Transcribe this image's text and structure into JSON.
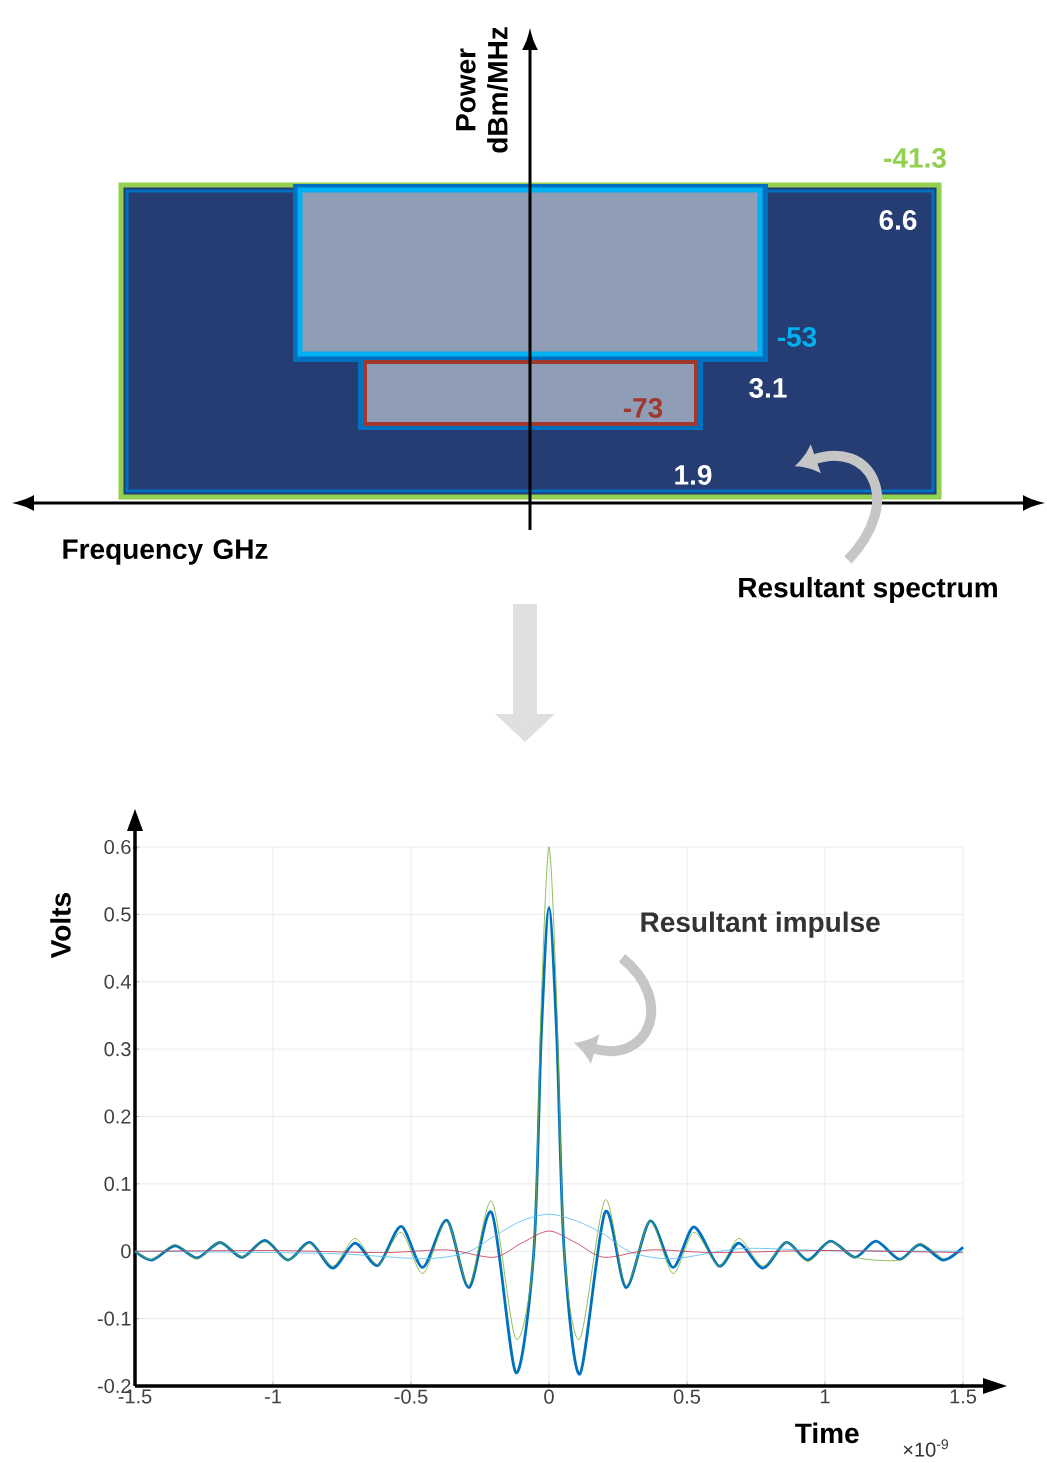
{
  "chart_data": [
    {
      "type": "other",
      "xlabel": "Frequency GHz",
      "ylabel": "Power dBm/MHz",
      "annotations": [
        "-41.3",
        "6.6",
        "-53",
        "3.1",
        "-73",
        "1.9",
        "Resultant spectrum"
      ]
    },
    {
      "type": "line",
      "xlabel": "Time",
      "ylabel": "Volts",
      "annotations": [
        "Resultant impulse",
        "×10$^{-9}$"
      ],
      "grid": true,
      "xlim": [
        -1.5,
        1.5
      ],
      "ylim": [
        -0.2,
        0.6
      ],
      "xticks": [
        -1.5,
        -1,
        -0.5,
        0,
        0.5,
        1,
        1.5
      ],
      "yticks": [
        -0.2,
        -0.1,
        0,
        0.1,
        0.2,
        0.3,
        0.4,
        0.5,
        0.6
      ],
      "series": [
        {
          "color": "#0072bd",
          "x": [
            -1.5,
            -1.438,
            -1.355,
            -1.275,
            -1.192,
            -1.112,
            -1.029,
            -0.946,
            -0.866,
            -0.783,
            -0.703,
            -0.62,
            -0.536,
            -0.457,
            -0.37,
            -0.29,
            -0.207,
            -0.12,
            -0.055,
            -0.028,
            0,
            0.028,
            0.055,
            0.112,
            0.203,
            0.279,
            0.366,
            0.449,
            0.525,
            0.616,
            0.688,
            0.775,
            0.859,
            0.938,
            1.02,
            1.109,
            1.185,
            1.27,
            1.344,
            1.428,
            1.5
          ],
          "values": [
            0.0,
            -0.013,
            0.008,
            -0.01,
            0.013,
            -0.009,
            0.016,
            -0.013,
            0.013,
            -0.025,
            0.012,
            -0.021,
            0.037,
            -0.024,
            0.046,
            -0.054,
            0.057,
            -0.18,
            0.0,
            0.32,
            0.51,
            0.32,
            0.0,
            -0.182,
            0.058,
            -0.054,
            0.045,
            -0.024,
            0.036,
            -0.022,
            0.012,
            -0.025,
            0.013,
            -0.013,
            0.015,
            -0.009,
            0.015,
            -0.012,
            0.01,
            -0.013,
            0.006
          ]
        },
        {
          "color": "#77ac30",
          "x": [
            -1.5,
            -1.438,
            -1.355,
            -1.275,
            -1.192,
            -1.112,
            -1.029,
            -0.946,
            -0.866,
            -0.783,
            -0.703,
            -0.62,
            -0.536,
            -0.457,
            -0.37,
            -0.29,
            -0.207,
            -0.12,
            -0.055,
            -0.028,
            0,
            0.028,
            0.055,
            0.112,
            0.203,
            0.279,
            0.366,
            0.449,
            0.525,
            0.616,
            0.688,
            0.775,
            0.859,
            0.938,
            1.02,
            1.109,
            1.185,
            1.27,
            1.344,
            1.428
          ],
          "values": [
            0.0,
            -0.012,
            0.01,
            -0.011,
            0.013,
            -0.008,
            0.014,
            -0.013,
            0.012,
            -0.022,
            0.019,
            -0.02,
            0.028,
            -0.033,
            0.044,
            -0.05,
            0.074,
            -0.13,
            0.0,
            0.37,
            0.6,
            0.37,
            0.0,
            -0.13,
            0.076,
            -0.05,
            0.044,
            -0.033,
            0.028,
            -0.022,
            0.019,
            -0.022,
            0.013,
            -0.015,
            0.014,
            -0.009,
            null,
            -0.013,
            0.011,
            -0.012
          ]
        },
        {
          "color": "#4dbeee",
          "x": [
            -1.5,
            -1.0,
            -0.75,
            -0.45,
            -0.3,
            -0.2,
            -0.1,
            0,
            0.1,
            0.2,
            0.3,
            0.45,
            0.7,
            1.0,
            1.5
          ],
          "values": [
            0.0,
            -0.002,
            -0.004,
            -0.011,
            -0.002,
            0.022,
            0.045,
            0.055,
            0.045,
            0.025,
            -0.002,
            -0.011,
            0.004,
            0.001,
            0.0
          ]
        },
        {
          "color": "#c0304a",
          "x": [
            -1.5,
            -1.0,
            -0.6,
            -0.37,
            -0.2,
            -0.1,
            0,
            0.1,
            0.2,
            0.37,
            0.6,
            1.0,
            1.5
          ],
          "values": [
            0.0,
            0.001,
            -0.002,
            0.002,
            -0.009,
            0.012,
            0.03,
            0.012,
            -0.009,
            0.002,
            -0.002,
            0.001,
            -0.002
          ]
        }
      ]
    }
  ]
}
